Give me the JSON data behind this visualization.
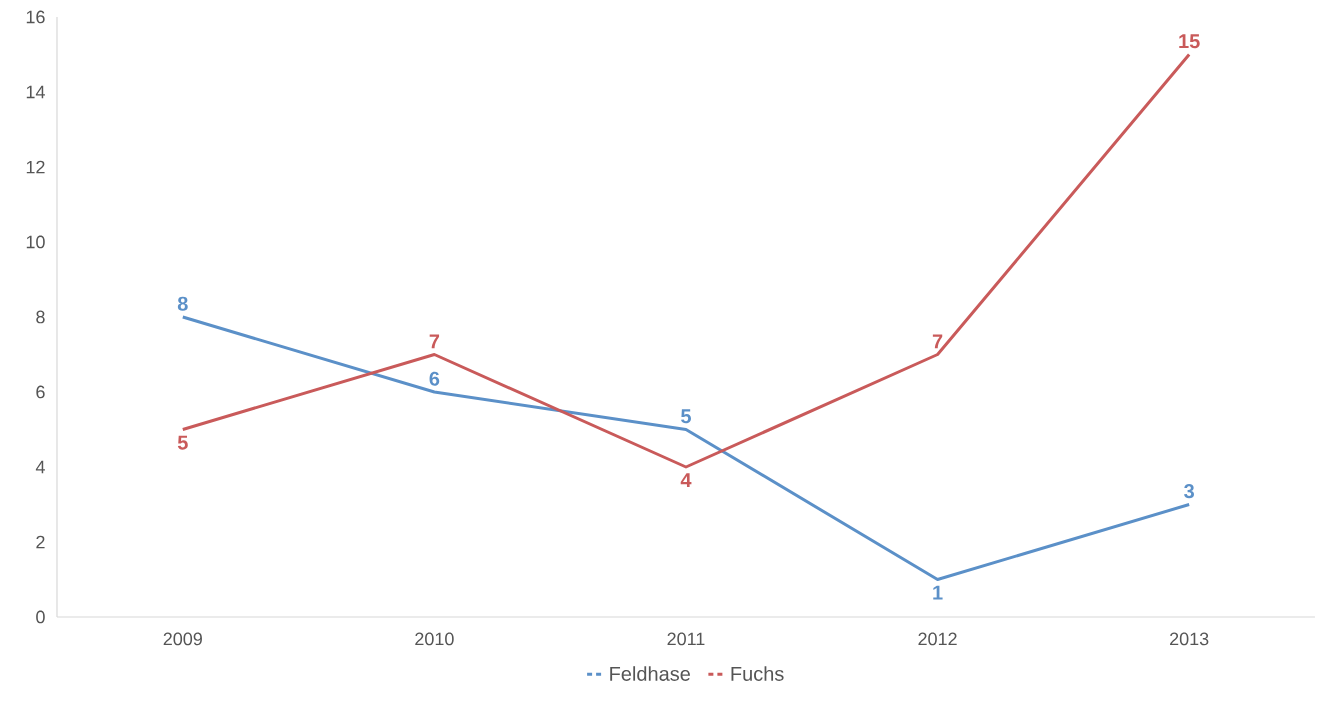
{
  "chart_data": {
    "type": "line",
    "categories": [
      "2009",
      "2010",
      "2011",
      "2012",
      "2013"
    ],
    "series": [
      {
        "name": "Feldhase",
        "color": "#5b90c8",
        "values": [
          8,
          6,
          5,
          1,
          3
        ]
      },
      {
        "name": "Fuchs",
        "color": "#c95a5a",
        "values": [
          5,
          7,
          4,
          7,
          15
        ]
      }
    ],
    "ylim": [
      0,
      16
    ],
    "yticks": [
      0,
      2,
      4,
      6,
      8,
      10,
      12,
      14,
      16
    ],
    "data_labels": true,
    "legend": "bottom",
    "line_style": "solid",
    "marker": "none"
  }
}
